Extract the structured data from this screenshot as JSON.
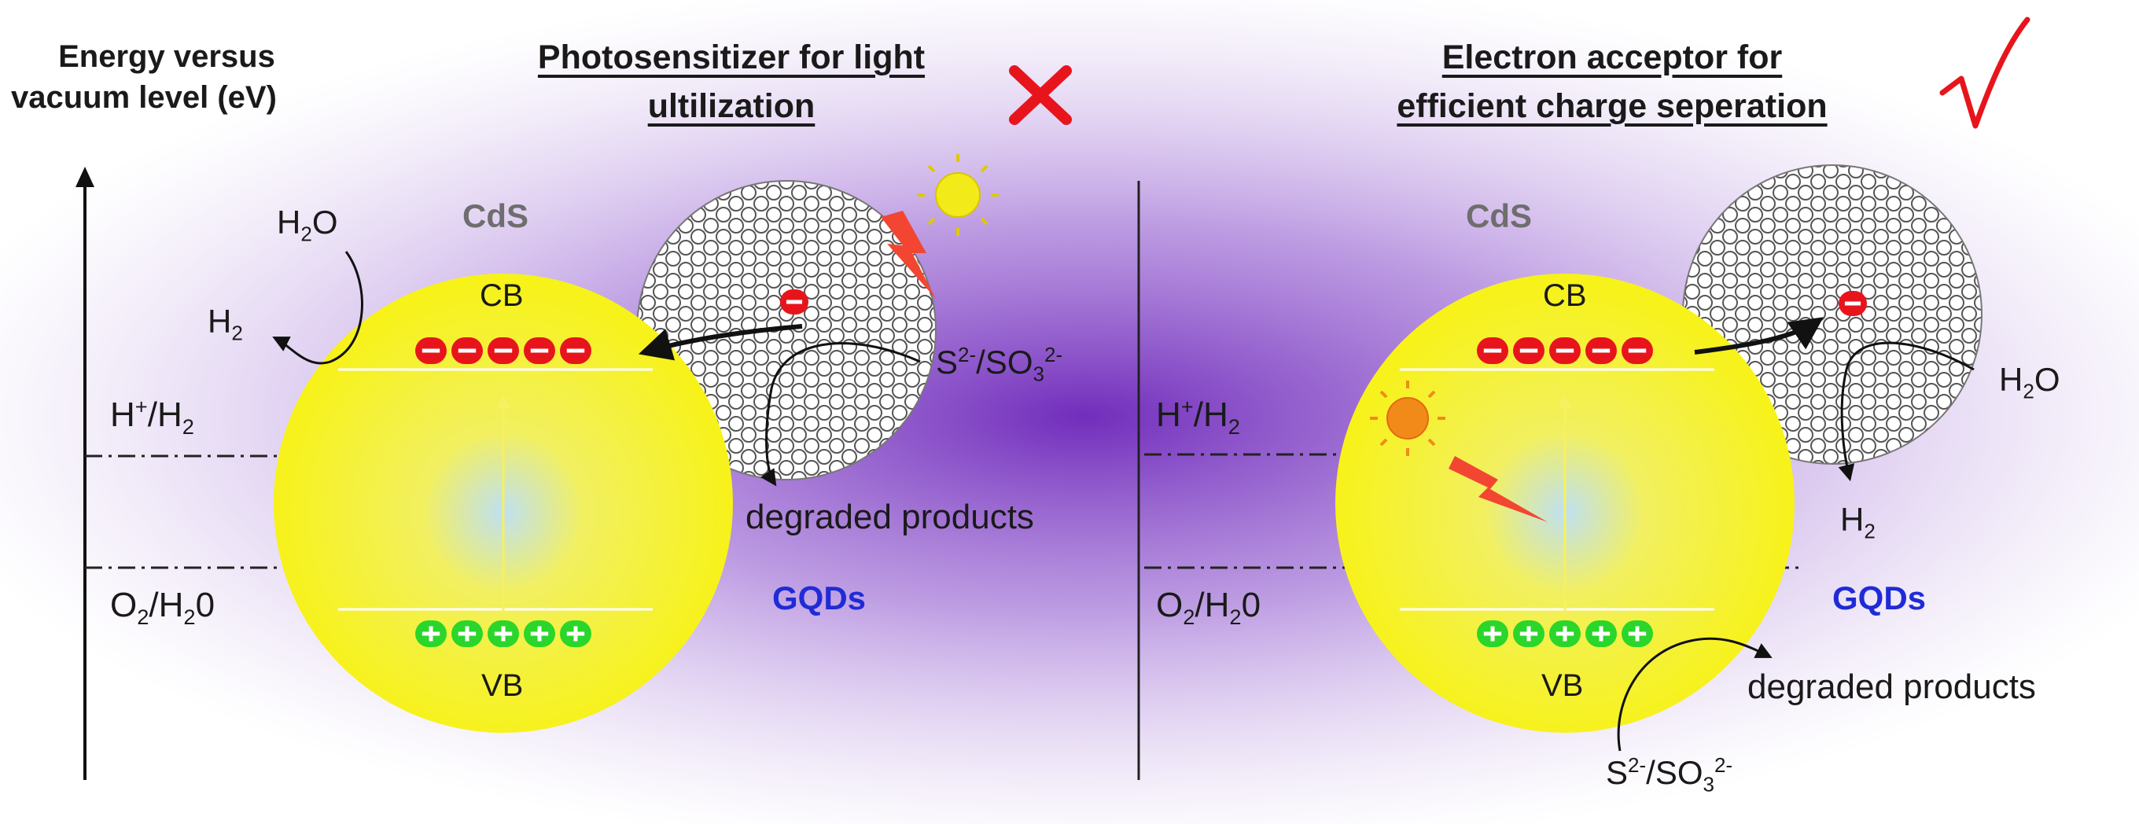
{
  "axis": {
    "label_line1": "Energy versus",
    "label_line2": "vacuum level (eV)"
  },
  "left_panel": {
    "heading_line1": "Photosensitizer for light",
    "heading_line2": "ultilization",
    "verdict_icon": "cross-mark-icon",
    "verdict_color": "#e8141c",
    "cds_label": "CdS",
    "cb_label": "CB",
    "vb_label": "VB",
    "gqds_label": "GQDs",
    "h2o_label": "H2O",
    "h2_label": "H2",
    "sacrificial_label": "S2-/SO32-",
    "products_label": "degraded products",
    "electron_count": 5,
    "hole_count": 5
  },
  "right_panel": {
    "heading_line1": "Electron acceptor for",
    "heading_line2": "efficient charge seperation",
    "verdict_icon": "check-mark-icon",
    "verdict_color": "#e8141c",
    "cds_label": "CdS",
    "cb_label": "CB",
    "vb_label": "VB",
    "gqds_label": "GQDs",
    "h2o_label": "H2O",
    "h2_label": "H2",
    "sacrificial_label": "S2-/SO32-",
    "products_label": "degraded products",
    "electron_count": 5,
    "hole_count": 5
  },
  "levels": {
    "h_label": "H+/H2",
    "o_label": "O2/H20"
  },
  "colors": {
    "cds_particle": "#f7f21a",
    "electron": "#e8141c",
    "hole": "#2ad62a",
    "glow": "#7b2fbf",
    "gqds_text": "#1f2bd6",
    "sun_left": "#f3ea1a",
    "sun_right": "#f28a1a"
  }
}
